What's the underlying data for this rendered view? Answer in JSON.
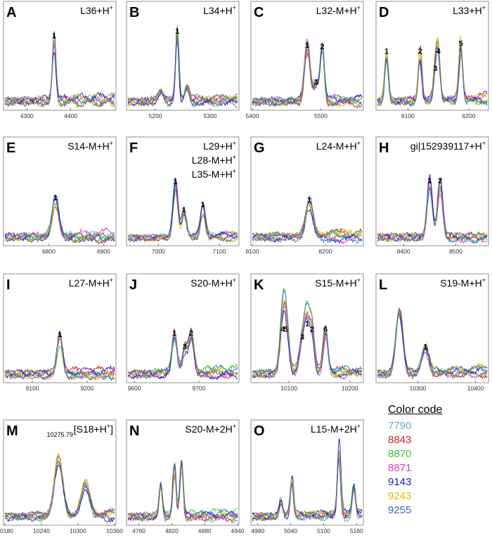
{
  "figure": {
    "legend_title": "Color code",
    "legend": [
      {
        "label": "7790",
        "color": "#6aa9c8"
      },
      {
        "label": "8843",
        "color": "#d11f1f"
      },
      {
        "label": "8870",
        "color": "#33cc33"
      },
      {
        "label": "8871",
        "color": "#cc44cc"
      },
      {
        "label": "9143",
        "color": "#1a1acc"
      },
      {
        "label": "9243",
        "color": "#e6b800"
      },
      {
        "label": "9255",
        "color": "#3a6bb0"
      }
    ]
  },
  "chart_data": [
    {
      "panel": "A",
      "title": "L36+H",
      "superscript": "+",
      "type": "line",
      "xlim": [
        4250,
        4500
      ],
      "xticks": [
        4300,
        4400
      ],
      "peaks": [
        {
          "x": 4362,
          "h": 0.82,
          "w": 4,
          "label": "1"
        }
      ]
    },
    {
      "panel": "B",
      "title": "L34+H",
      "superscript": "+",
      "type": "line",
      "xlim": [
        5150,
        5350
      ],
      "xticks": [
        5200,
        5300
      ],
      "peaks": [
        {
          "x": 5240,
          "h": 0.88,
          "w": 3,
          "label": "1"
        },
        {
          "x": 5210,
          "h": 0.12,
          "w": 5,
          "label": ""
        },
        {
          "x": 5258,
          "h": 0.18,
          "w": 4,
          "label": ""
        }
      ]
    },
    {
      "panel": "C",
      "title": "L32-M+H",
      "superscript": "+",
      "type": "line",
      "xlim": [
        5400,
        5560
      ],
      "xticks": [
        5400,
        5500
      ],
      "peaks": [
        {
          "x": 5480,
          "h": 0.7,
          "w": 4,
          "label": "1"
        },
        {
          "x": 5493,
          "h": 0.22,
          "w": 4,
          "label": "3"
        },
        {
          "x": 5502,
          "h": 0.68,
          "w": 3,
          "label": "2"
        }
      ]
    },
    {
      "panel": "D",
      "title": "L33+H",
      "superscript": "+",
      "type": "line",
      "xlim": [
        6050,
        6230
      ],
      "xticks": [
        6100,
        6200
      ],
      "peaks": [
        {
          "x": 6065,
          "h": 0.62,
          "w": 3,
          "label": "1"
        },
        {
          "x": 6120,
          "h": 0.62,
          "w": 3,
          "label": "2"
        },
        {
          "x": 6145,
          "h": 0.4,
          "w": 3,
          "label": "3"
        },
        {
          "x": 6150,
          "h": 0.62,
          "w": 3,
          "label": "4"
        },
        {
          "x": 6187,
          "h": 0.72,
          "w": 3,
          "label": "5"
        }
      ]
    },
    {
      "panel": "E",
      "title": "S14-M+H",
      "superscript": "+",
      "type": "line",
      "xlim": [
        6720,
        6920
      ],
      "xticks": [
        6800,
        6900
      ],
      "peaks": [
        {
          "x": 6812,
          "h": 0.48,
          "w": 6,
          "label": "1"
        }
      ]
    },
    {
      "panel": "F",
      "title": "L29+H",
      "superscript": "+",
      "subtitles": [
        "L28-M+H",
        "L35-M+H"
      ],
      "type": "line",
      "xlim": [
        6950,
        7130
      ],
      "xticks": [
        7000,
        7100
      ],
      "peaks": [
        {
          "x": 7028,
          "h": 0.85,
          "w": 4,
          "label": "1"
        },
        {
          "x": 7042,
          "h": 0.4,
          "w": 4,
          "label": "1"
        },
        {
          "x": 7073,
          "h": 0.48,
          "w": 4,
          "label": "1"
        }
      ]
    },
    {
      "panel": "G",
      "title": "L24-M+H",
      "superscript": "+",
      "type": "line",
      "xlim": [
        8100,
        8250
      ],
      "xticks": [
        8100,
        8200
      ],
      "peaks": [
        {
          "x": 8178,
          "h": 0.45,
          "w": 5,
          "label": "1"
        }
      ]
    },
    {
      "panel": "H",
      "title": "gi|152939117+H",
      "superscript": "+",
      "type": "line",
      "xlim": [
        8350,
        8560
      ],
      "xticks": [
        8400,
        8500
      ],
      "peaks": [
        {
          "x": 8450,
          "h": 0.7,
          "w": 5,
          "label": "1"
        },
        {
          "x": 8470,
          "h": 0.7,
          "w": 5,
          "label": "2"
        }
      ]
    },
    {
      "panel": "I",
      "title": "L27-M+H",
      "superscript": "+",
      "type": "line",
      "xlim": [
        9050,
        9250
      ],
      "xticks": [
        9100,
        9200
      ],
      "peaks": [
        {
          "x": 9150,
          "h": 0.48,
          "w": 5,
          "label": "1"
        }
      ]
    },
    {
      "panel": "J",
      "title": "S20-M+H",
      "superscript": "+",
      "type": "line",
      "xlim": [
        9590,
        9760
      ],
      "xticks": [
        9600,
        9700
      ],
      "peaks": [
        {
          "x": 9662,
          "h": 0.5,
          "w": 4,
          "label": "1"
        },
        {
          "x": 9678,
          "h": 0.32,
          "w": 4,
          "label": "3"
        },
        {
          "x": 9688,
          "h": 0.5,
          "w": 4,
          "label": "2"
        }
      ]
    },
    {
      "panel": "K",
      "title": "S15-M+H",
      "superscript": "+",
      "type": "line",
      "xlim": [
        10040,
        10220
      ],
      "xticks": [
        10100,
        10200
      ],
      "peaks": [
        {
          "x": 10090,
          "h": 0.55,
          "w": 5,
          "label": "4"
        },
        {
          "x": 10095,
          "h": 0.55,
          "w": 5,
          "label": "5"
        },
        {
          "x": 10122,
          "h": 0.45,
          "w": 5,
          "label": "3"
        },
        {
          "x": 10130,
          "h": 0.62,
          "w": 4,
          "label": "1"
        },
        {
          "x": 10138,
          "h": 0.55,
          "w": 4,
          "label": "2"
        },
        {
          "x": 10160,
          "h": 0.55,
          "w": 4,
          "label": "6"
        }
      ]
    },
    {
      "panel": "L",
      "title": "S19-M+H",
      "superscript": "+",
      "type": "line",
      "xlim": [
        10230,
        10420
      ],
      "xticks": [
        10300,
        10400
      ],
      "peaks": [
        {
          "x": 10268,
          "h": 0.78,
          "w": 6,
          "label": ""
        },
        {
          "x": 10313,
          "h": 0.32,
          "w": 6,
          "label": "1"
        }
      ]
    },
    {
      "panel": "M",
      "title": "[S18+H",
      "superscript": "+",
      "title_suffix": "]",
      "type": "line",
      "xlim": [
        10180,
        10360
      ],
      "xticks": [
        10180,
        10240,
        10300,
        10360
      ],
      "annotation": "10275.79",
      "peaks": [
        {
          "x": 10268,
          "h": 0.78,
          "w": 7,
          "label": ""
        },
        {
          "x": 10312,
          "h": 0.42,
          "w": 7,
          "label": ""
        }
      ]
    },
    {
      "panel": "N",
      "title": "S20-M+2H",
      "superscript": "+",
      "type": "line",
      "xlim": [
        4740,
        4940
      ],
      "xticks": [
        4760,
        4820,
        4880,
        4940
      ],
      "peaks": [
        {
          "x": 4800,
          "h": 0.45,
          "w": 3,
          "label": ""
        },
        {
          "x": 4825,
          "h": 0.68,
          "w": 3,
          "label": ""
        },
        {
          "x": 4838,
          "h": 0.75,
          "w": 3,
          "label": ""
        }
      ]
    },
    {
      "panel": "O",
      "title": "L15-M+2H",
      "superscript": "+",
      "type": "line",
      "xlim": [
        4970,
        5170
      ],
      "xticks": [
        4980,
        5040,
        5100,
        5160
      ],
      "peaks": [
        {
          "x": 5022,
          "h": 0.22,
          "w": 3,
          "label": ""
        },
        {
          "x": 5042,
          "h": 0.5,
          "w": 3,
          "label": ""
        },
        {
          "x": 5128,
          "h": 0.88,
          "w": 3,
          "label": ""
        },
        {
          "x": 5155,
          "h": 0.38,
          "w": 3,
          "label": ""
        }
      ]
    }
  ]
}
